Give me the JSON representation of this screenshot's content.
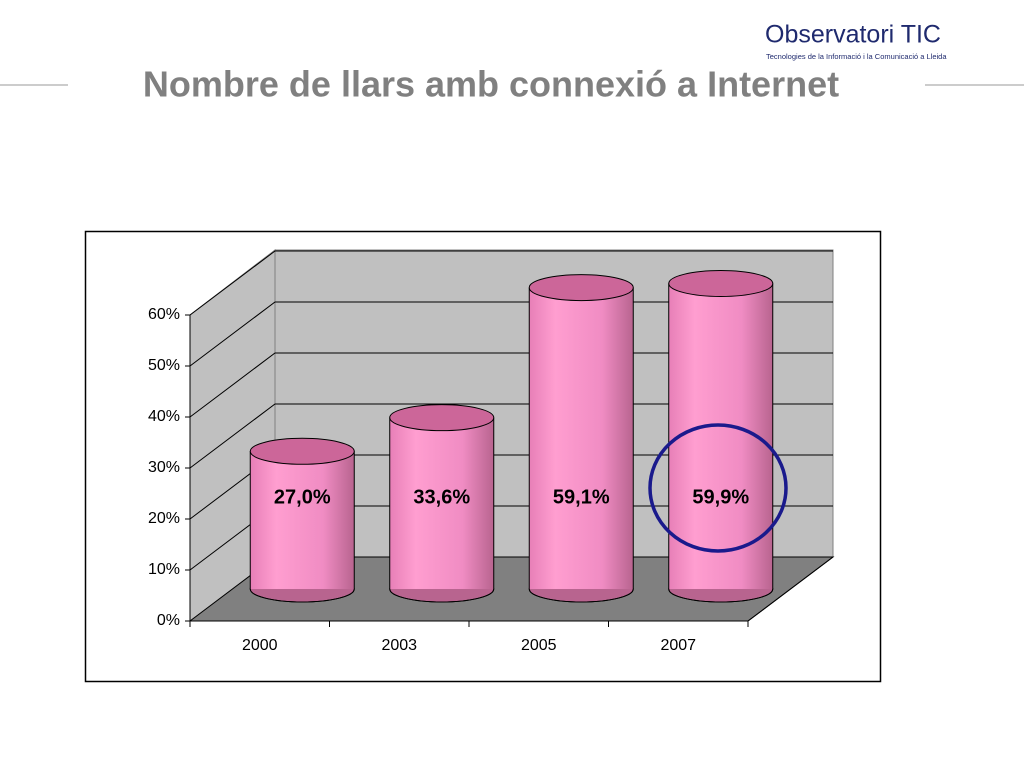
{
  "logo": {
    "name": "Observatori TIC",
    "tagline": "Tecnologies de la Informació i la Comunicació a Lleida"
  },
  "chart_data": {
    "type": "bar",
    "title": "Nombre de llars amb connexió a Internet",
    "categories": [
      "2000",
      "2003",
      "2005",
      "2007"
    ],
    "values": [
      27.0,
      33.6,
      59.1,
      59.9
    ],
    "value_labels": [
      "27,0%",
      "33,6%",
      "59,1%",
      "59,9%"
    ],
    "color": "#ff99cc",
    "ylim": [
      0,
      60
    ],
    "yticks": [
      {
        "value": 0,
        "label": "0%"
      },
      {
        "value": 10,
        "label": "10%"
      },
      {
        "value": 20,
        "label": "20%"
      },
      {
        "value": 30,
        "label": "30%"
      },
      {
        "value": 40,
        "label": "40%"
      },
      {
        "value": 50,
        "label": "50%"
      },
      {
        "value": 60,
        "label": "60%"
      }
    ],
    "grid": true
  }
}
